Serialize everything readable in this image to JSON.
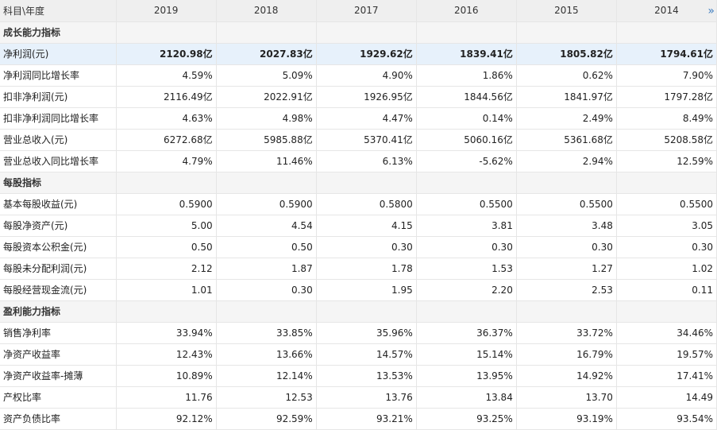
{
  "header": {
    "first_col": "科目\\年度",
    "years": [
      "2019",
      "2018",
      "2017",
      "2016",
      "2015",
      "2014"
    ],
    "next_icon": "»"
  },
  "rows": [
    {
      "type": "section",
      "label": "成长能力指标",
      "values": [
        "",
        "",
        "",
        "",
        "",
        ""
      ]
    },
    {
      "type": "hl",
      "label": "净利润(元)",
      "values": [
        "2120.98亿",
        "2027.83亿",
        "1929.62亿",
        "1839.41亿",
        "1805.82亿",
        "1794.61亿"
      ]
    },
    {
      "type": "row",
      "label": "净利润同比增长率",
      "values": [
        "4.59%",
        "5.09%",
        "4.90%",
        "1.86%",
        "0.62%",
        "7.90%"
      ]
    },
    {
      "type": "row",
      "label": "扣非净利润(元)",
      "values": [
        "2116.49亿",
        "2022.91亿",
        "1926.95亿",
        "1844.56亿",
        "1841.97亿",
        "1797.28亿"
      ]
    },
    {
      "type": "row",
      "label": "扣非净利润同比增长率",
      "values": [
        "4.63%",
        "4.98%",
        "4.47%",
        "0.14%",
        "2.49%",
        "8.49%"
      ]
    },
    {
      "type": "row",
      "label": "营业总收入(元)",
      "values": [
        "6272.68亿",
        "5985.88亿",
        "5370.41亿",
        "5060.16亿",
        "5361.68亿",
        "5208.58亿"
      ]
    },
    {
      "type": "row",
      "label": "营业总收入同比增长率",
      "values": [
        "4.79%",
        "11.46%",
        "6.13%",
        "-5.62%",
        "2.94%",
        "12.59%"
      ]
    },
    {
      "type": "section",
      "label": "每股指标",
      "values": [
        "",
        "",
        "",
        "",
        "",
        ""
      ]
    },
    {
      "type": "row",
      "label": "基本每股收益(元)",
      "values": [
        "0.5900",
        "0.5900",
        "0.5800",
        "0.5500",
        "0.5500",
        "0.5500"
      ]
    },
    {
      "type": "row",
      "label": "每股净资产(元)",
      "values": [
        "5.00",
        "4.54",
        "4.15",
        "3.81",
        "3.48",
        "3.05"
      ]
    },
    {
      "type": "row",
      "label": "每股资本公积金(元)",
      "values": [
        "0.50",
        "0.50",
        "0.30",
        "0.30",
        "0.30",
        "0.30"
      ]
    },
    {
      "type": "row",
      "label": "每股未分配利润(元)",
      "values": [
        "2.12",
        "1.87",
        "1.78",
        "1.53",
        "1.27",
        "1.02"
      ]
    },
    {
      "type": "row",
      "label": "每股经营现金流(元)",
      "values": [
        "1.01",
        "0.30",
        "1.95",
        "2.20",
        "2.53",
        "0.11"
      ]
    },
    {
      "type": "section",
      "label": "盈利能力指标",
      "values": [
        "",
        "",
        "",
        "",
        "",
        ""
      ]
    },
    {
      "type": "row",
      "label": "销售净利率",
      "values": [
        "33.94%",
        "33.85%",
        "35.96%",
        "36.37%",
        "33.72%",
        "34.46%"
      ]
    },
    {
      "type": "row",
      "label": "净资产收益率",
      "values": [
        "12.43%",
        "13.66%",
        "14.57%",
        "15.14%",
        "16.79%",
        "19.57%"
      ]
    },
    {
      "type": "row",
      "label": "净资产收益率-摊薄",
      "values": [
        "10.89%",
        "12.14%",
        "13.53%",
        "13.95%",
        "14.92%",
        "17.41%"
      ]
    },
    {
      "type": "row",
      "label": "产权比率",
      "values": [
        "11.76",
        "12.53",
        "13.76",
        "13.84",
        "13.70",
        "14.49"
      ]
    },
    {
      "type": "row",
      "label": "资产负债比率",
      "values": [
        "92.12%",
        "92.59%",
        "93.21%",
        "93.25%",
        "93.19%",
        "93.54%"
      ]
    }
  ]
}
